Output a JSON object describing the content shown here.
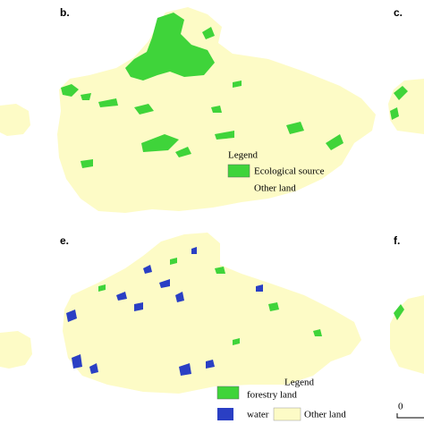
{
  "panels": [
    {
      "label": "b.",
      "legend": {
        "title": "Legend",
        "items": [
          "Ecological source",
          "Other land"
        ]
      }
    },
    {
      "label": "c."
    },
    {
      "label": "e.",
      "legend": {
        "title": "Legend",
        "items": [
          "forestry land",
          "water",
          "Other land"
        ]
      }
    },
    {
      "label": "f.",
      "scale_bar": "0"
    }
  ]
}
